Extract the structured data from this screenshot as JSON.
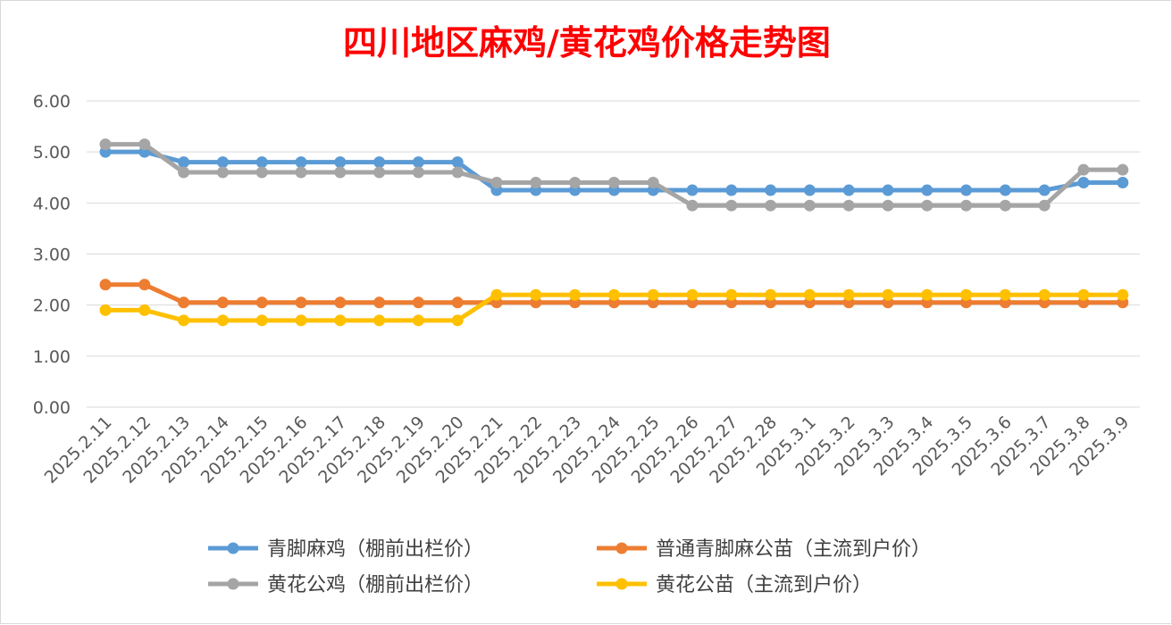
{
  "chart_data": {
    "type": "line",
    "title": "四川地区麻鸡/黄花鸡价格走势图",
    "xlabel": "",
    "ylabel": "",
    "ylim": [
      0,
      6
    ],
    "y_ticks": [
      "0.00",
      "1.00",
      "2.00",
      "3.00",
      "4.00",
      "5.00",
      "6.00"
    ],
    "grid": true,
    "legend_position": "bottom",
    "categories": [
      "2025.2.11",
      "2025.2.12",
      "2025.2.13",
      "2025.2.14",
      "2025.2.15",
      "2025.2.16",
      "2025.2.17",
      "2025.2.18",
      "2025.2.19",
      "2025.2.20",
      "2025.2.21",
      "2025.2.22",
      "2025.2.23",
      "2025.2.24",
      "2025.2.25",
      "2025.2.26",
      "2025.2.27",
      "2025.2.28",
      "2025.3.1",
      "2025.3.2",
      "2025.3.3",
      "2025.3.4",
      "2025.3.5",
      "2025.3.6",
      "2025.3.7",
      "2025.3.8",
      "2025.3.9"
    ],
    "series": [
      {
        "name": "青脚麻鸡（棚前出栏价）",
        "color": "#5b9bd5",
        "values": [
          5.0,
          5.0,
          4.8,
          4.8,
          4.8,
          4.8,
          4.8,
          4.8,
          4.8,
          4.8,
          4.25,
          4.25,
          4.25,
          4.25,
          4.25,
          4.25,
          4.25,
          4.25,
          4.25,
          4.25,
          4.25,
          4.25,
          4.25,
          4.25,
          4.25,
          4.4,
          4.4
        ]
      },
      {
        "name": "普通青脚麻公苗（主流到户价）",
        "color": "#ed7d31",
        "values": [
          2.4,
          2.4,
          2.05,
          2.05,
          2.05,
          2.05,
          2.05,
          2.05,
          2.05,
          2.05,
          2.05,
          2.05,
          2.05,
          2.05,
          2.05,
          2.05,
          2.05,
          2.05,
          2.05,
          2.05,
          2.05,
          2.05,
          2.05,
          2.05,
          2.05,
          2.05,
          2.05
        ]
      },
      {
        "name": "黄花公鸡（棚前出栏价）",
        "color": "#a5a5a5",
        "values": [
          5.15,
          5.15,
          4.6,
          4.6,
          4.6,
          4.6,
          4.6,
          4.6,
          4.6,
          4.6,
          4.4,
          4.4,
          4.4,
          4.4,
          4.4,
          3.95,
          3.95,
          3.95,
          3.95,
          3.95,
          3.95,
          3.95,
          3.95,
          3.95,
          3.95,
          4.65,
          4.65
        ]
      },
      {
        "name": "黄花公苗（主流到户价）",
        "color": "#ffc000",
        "values": [
          1.9,
          1.9,
          1.7,
          1.7,
          1.7,
          1.7,
          1.7,
          1.7,
          1.7,
          1.7,
          2.2,
          2.2,
          2.2,
          2.2,
          2.2,
          2.2,
          2.2,
          2.2,
          2.2,
          2.2,
          2.2,
          2.2,
          2.2,
          2.2,
          2.2,
          2.2,
          2.2
        ]
      }
    ]
  }
}
